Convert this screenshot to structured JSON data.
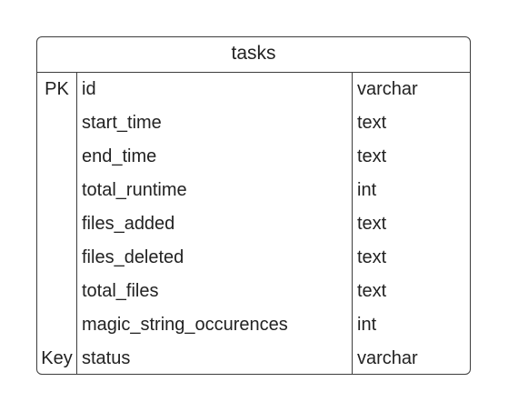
{
  "table": {
    "name": "tasks",
    "rows": [
      {
        "key": "PK",
        "name": "id",
        "type": "varchar"
      },
      {
        "key": "",
        "name": "start_time",
        "type": "text"
      },
      {
        "key": "",
        "name": "end_time",
        "type": "text"
      },
      {
        "key": "",
        "name": "total_runtime",
        "type": "int"
      },
      {
        "key": "",
        "name": "files_added",
        "type": "text"
      },
      {
        "key": "",
        "name": "files_deleted",
        "type": "text"
      },
      {
        "key": "",
        "name": "total_files",
        "type": "text"
      },
      {
        "key": "",
        "name": "magic_string_occurences",
        "type": "int"
      },
      {
        "key": "Key",
        "name": "status",
        "type": "varchar"
      }
    ]
  }
}
